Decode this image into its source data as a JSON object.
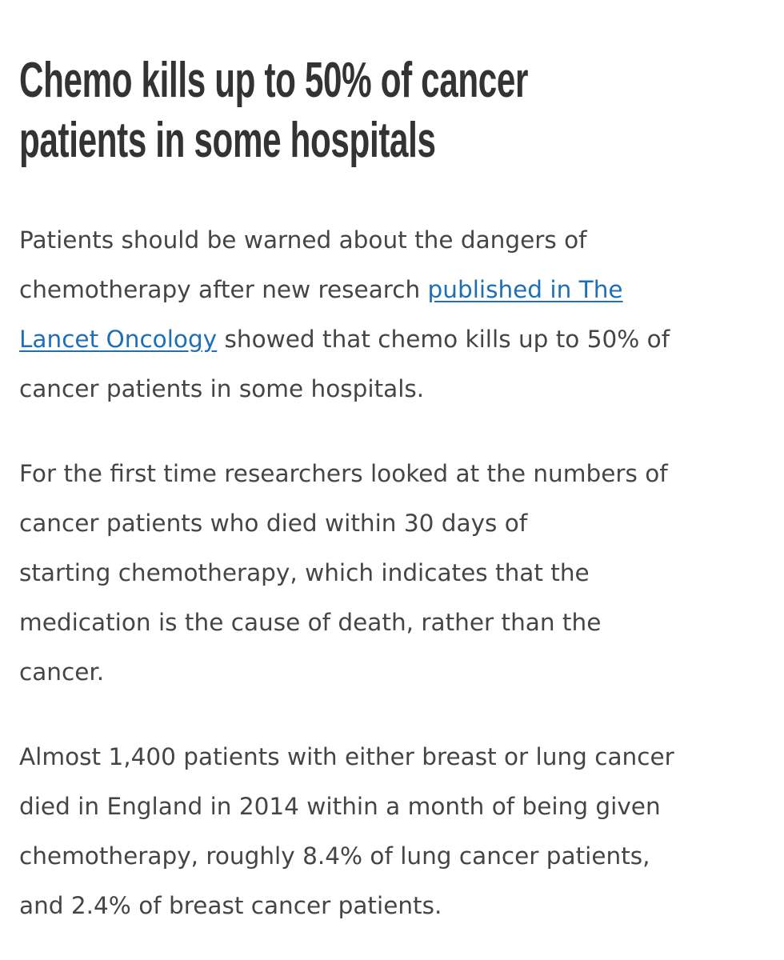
{
  "article": {
    "title_lines": [
      "Chemo kills up to 50% of cancer",
      "patients in some hospitals"
    ],
    "link_color": "#1f6fb6",
    "paragraphs": [
      {
        "lines": [
          {
            "text": "Patients should be warned about the dangers of"
          },
          {
            "text": "chemotherapy after new research ",
            "link": "published in The"
          },
          {
            "link": "Lancet Oncology",
            "text": " showed that chemo kills up to 50% of"
          },
          {
            "text": "cancer patients in some hospitals."
          }
        ]
      },
      {
        "lines": [
          {
            "text": "For the first time researchers looked at the numbers of"
          },
          {
            "text": "cancer patients who died within 30 days of"
          },
          {
            "text": "starting chemotherapy, which indicates that the"
          },
          {
            "text": "medication is the cause of death, rather than the"
          },
          {
            "text": "cancer."
          }
        ]
      },
      {
        "lines": [
          {
            "text": "Almost 1,400 patients with either breast or lung cancer"
          },
          {
            "text": "died in England in 2014 within a month of being given"
          },
          {
            "text": "chemotherapy, roughly 8.4% of lung cancer patients,"
          },
          {
            "text": "and 2.4% of breast cancer patients."
          }
        ]
      }
    ]
  }
}
